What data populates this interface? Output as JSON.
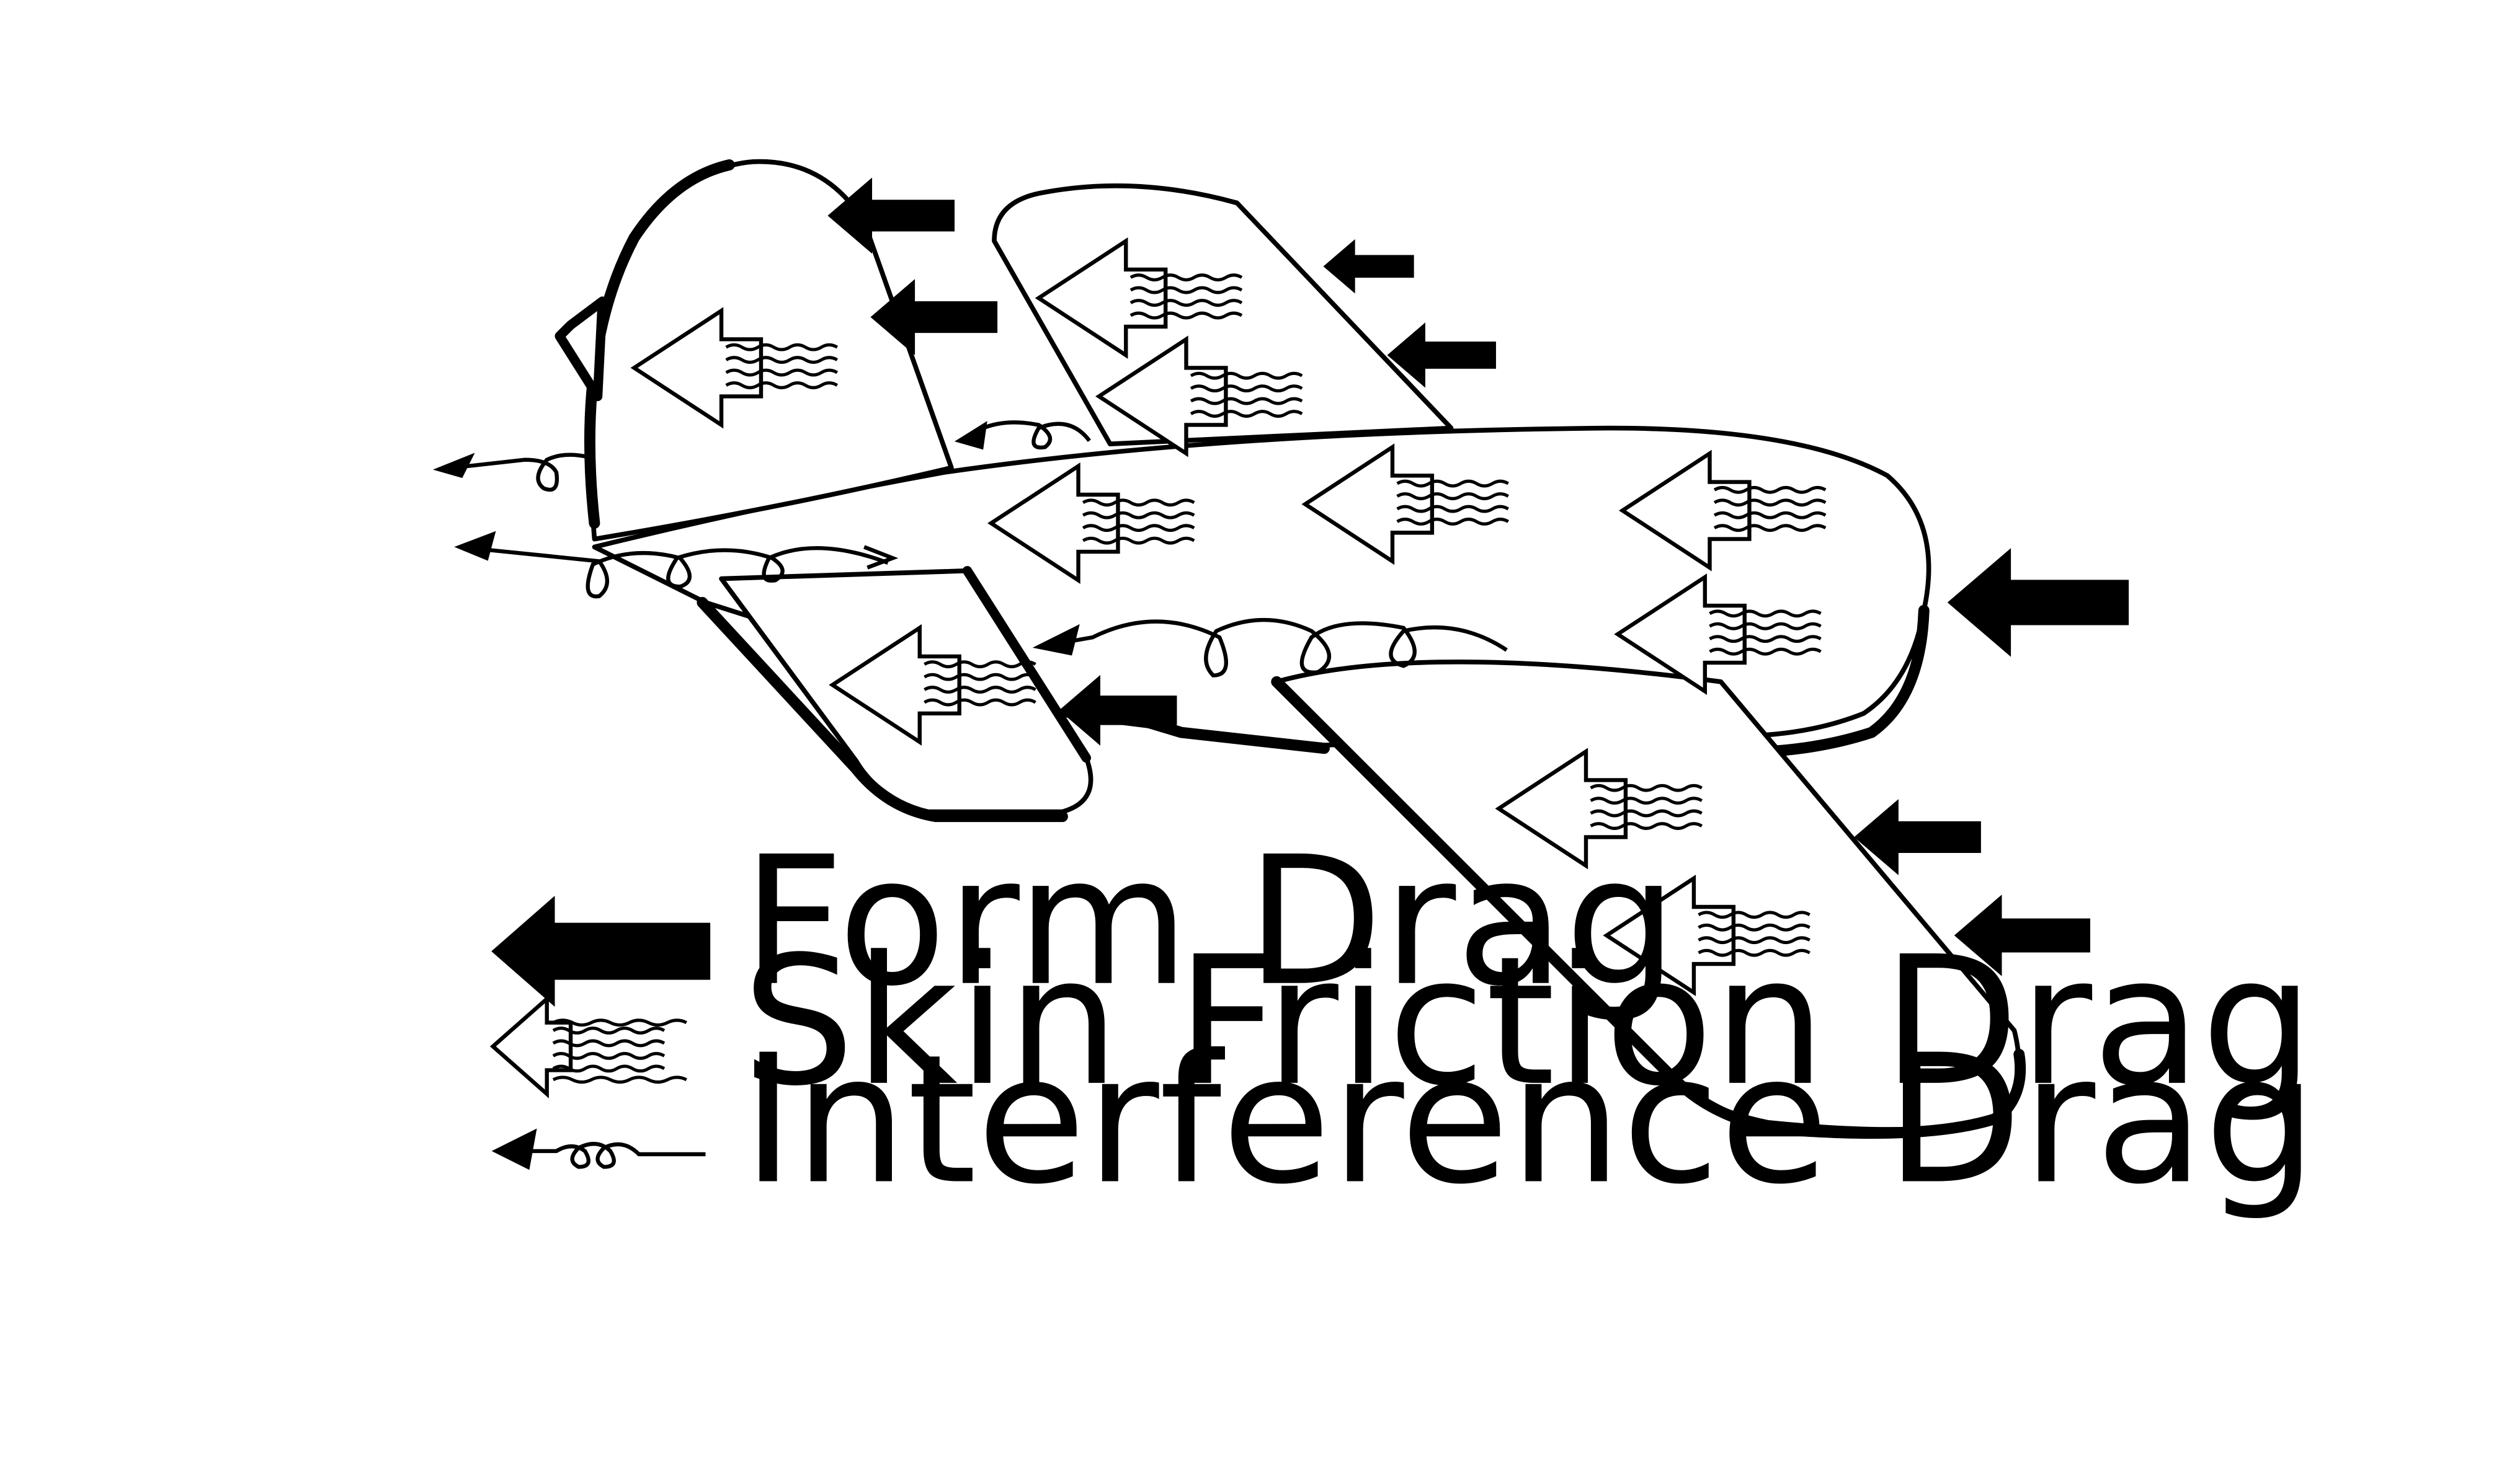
{
  "diagram": {
    "colors": {
      "ink": "#000000",
      "paper": "#ffffff"
    },
    "legend": [
      {
        "key": "form",
        "label": "Form Drag",
        "icon": "solid-arrow-icon"
      },
      {
        "key": "skin",
        "label": "Skin Friction Drag",
        "icon": "hollow-wavy-arrow-icon"
      },
      {
        "key": "interference",
        "label": "Interference Drag",
        "icon": "loop-arrow-icon"
      }
    ]
  }
}
